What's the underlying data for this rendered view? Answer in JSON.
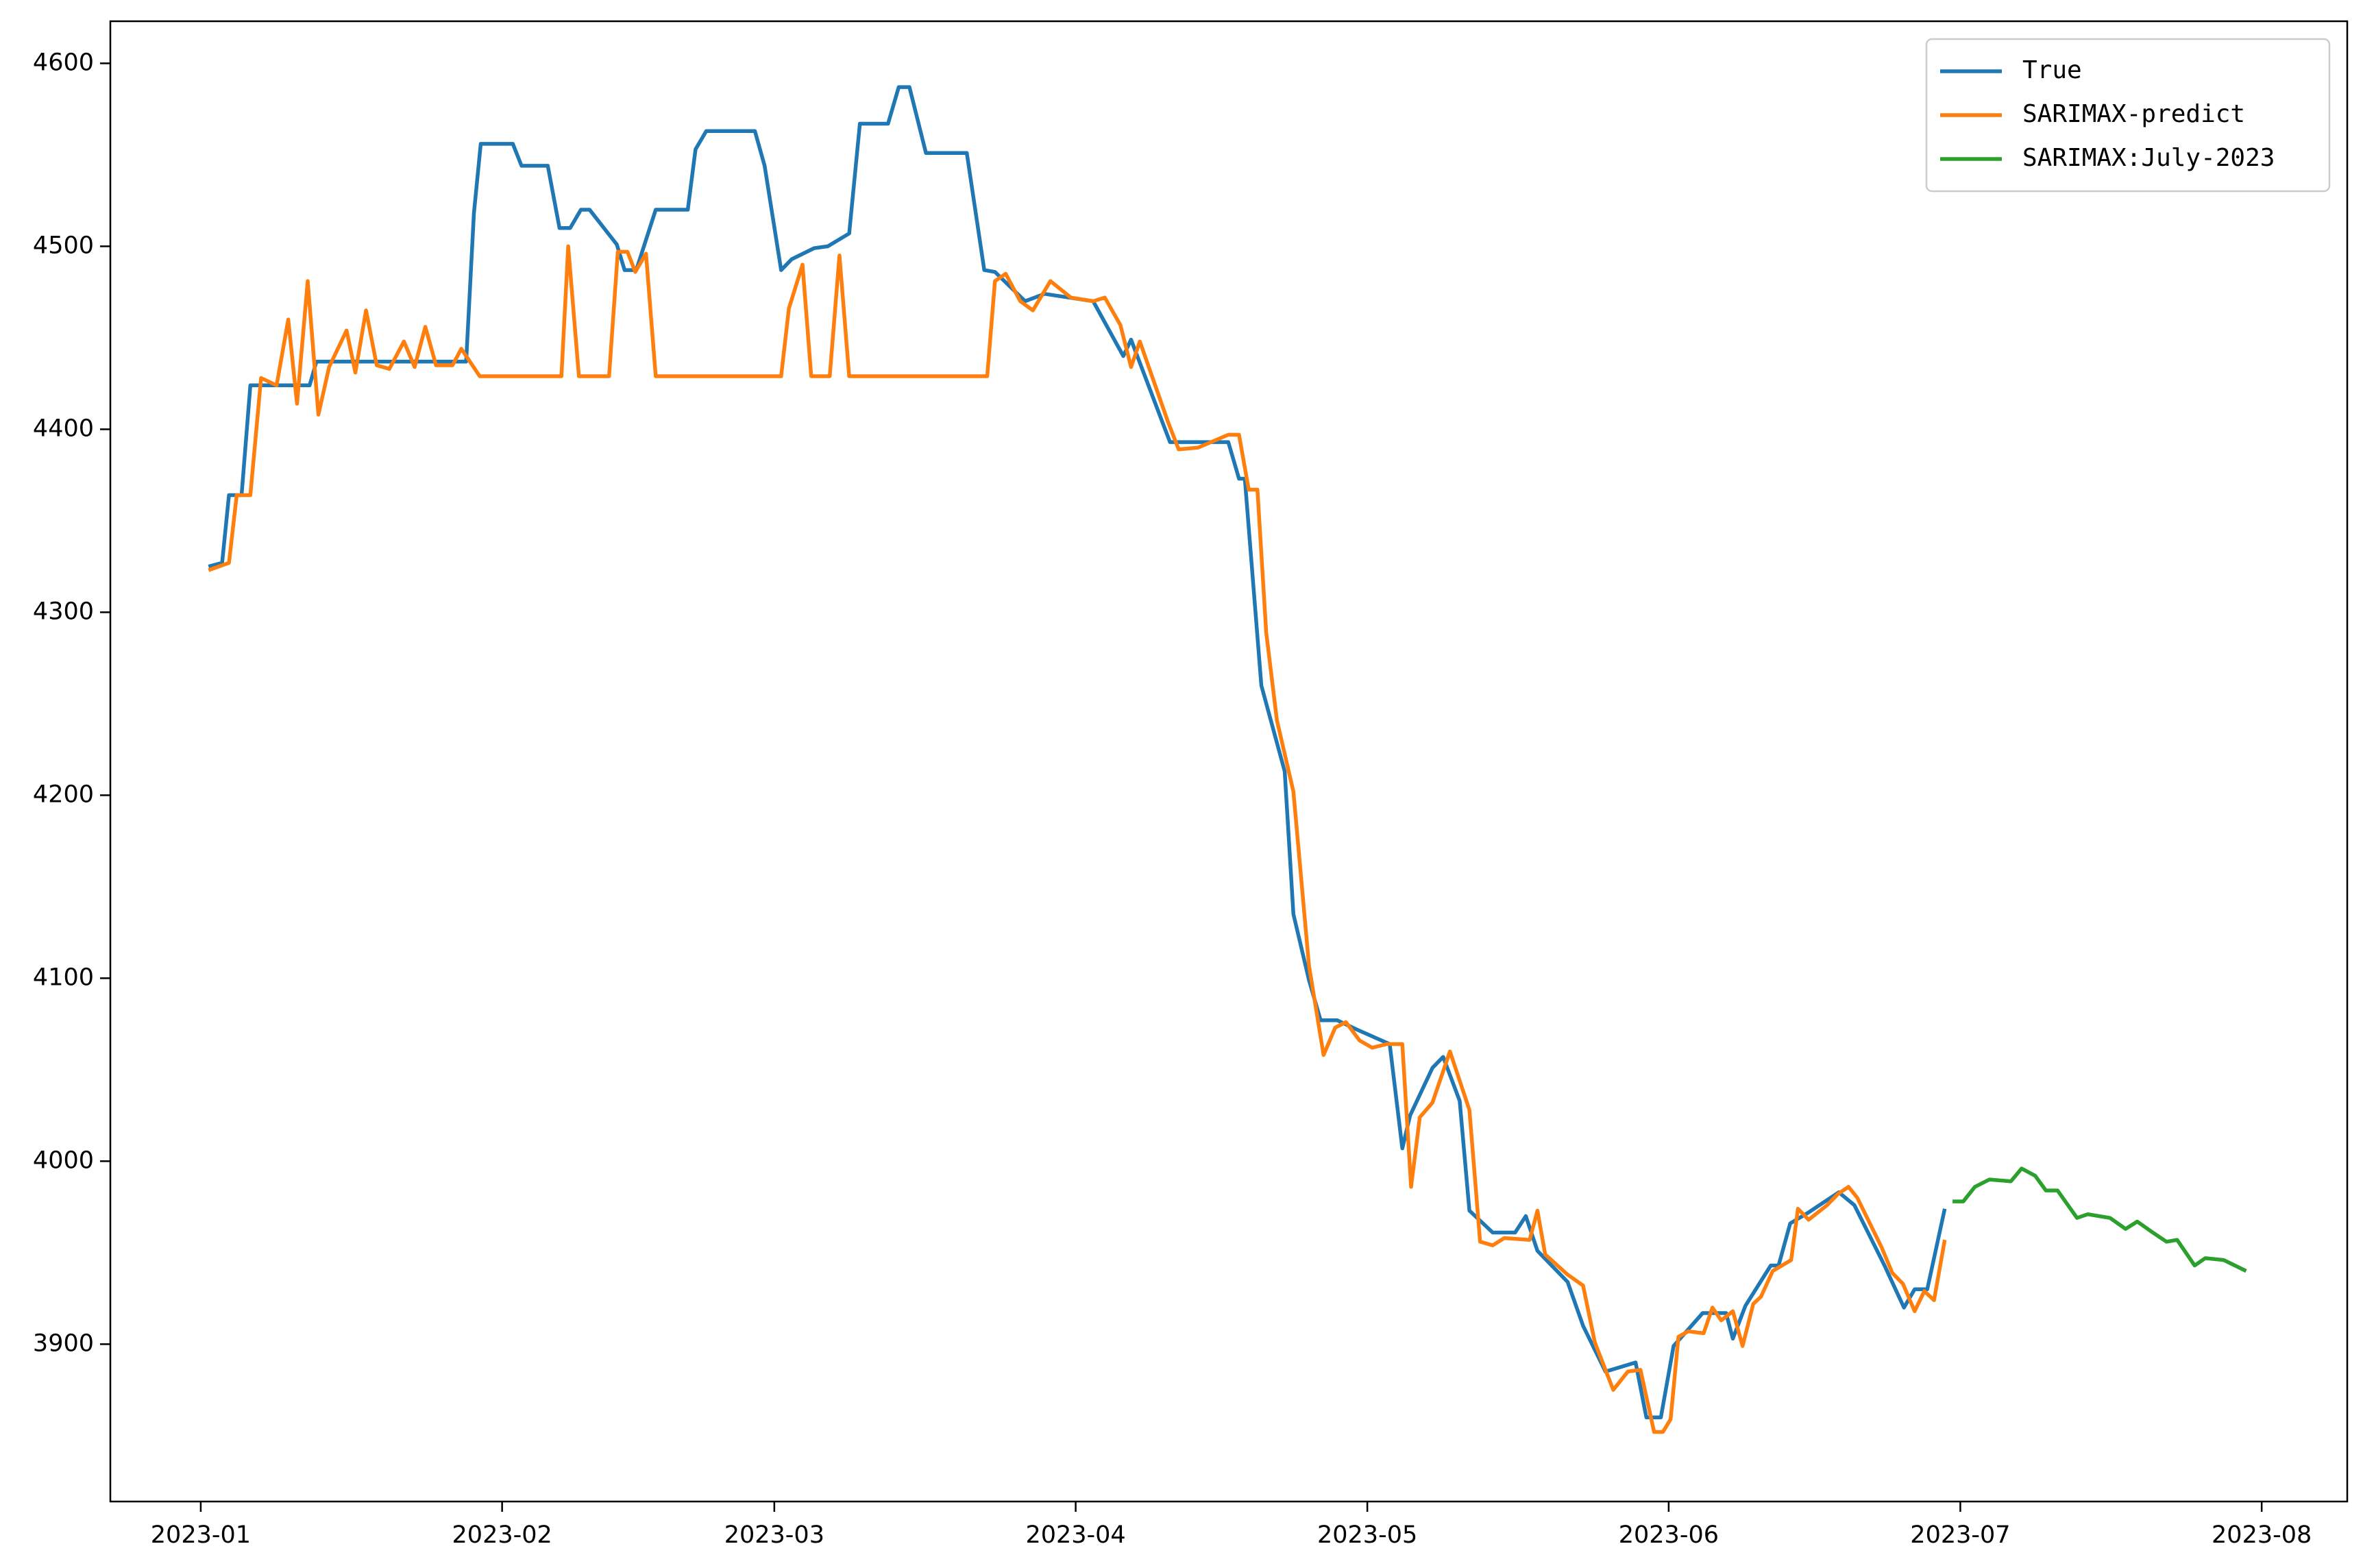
{
  "chart_data": {
    "type": "line",
    "xlim": [
      -9.3,
      220.8
    ],
    "ylim": [
      3814,
      4623
    ],
    "xticks": [
      {
        "value": 0,
        "label": "2023-01"
      },
      {
        "value": 31,
        "label": "2023-02"
      },
      {
        "value": 59,
        "label": "2023-03"
      },
      {
        "value": 90,
        "label": "2023-04"
      },
      {
        "value": 120,
        "label": "2023-05"
      },
      {
        "value": 151,
        "label": "2023-06"
      },
      {
        "value": 181,
        "label": "2023-07"
      },
      {
        "value": 212,
        "label": "2023-08"
      }
    ],
    "yticks": [
      3900,
      4000,
      4100,
      4200,
      4300,
      4400,
      4500,
      4600
    ],
    "legend": "upper right",
    "series": [
      {
        "name": "True",
        "color": "#1f77b4",
        "x": [
          0.8,
          2.2,
          2.9,
          4.2,
          5.1,
          11.2,
          11.9,
          25.9,
          27.3,
          28.1,
          28.8,
          32.1,
          33.0,
          35.7,
          36.9,
          38.0,
          39.1,
          40.0,
          42.8,
          43.6,
          44.8,
          46.8,
          50.1,
          50.9,
          52.0,
          57.0,
          58.0,
          59.7,
          60.8,
          63.1,
          64.5,
          66.7,
          67.8,
          70.7,
          71.8,
          72.9,
          74.6,
          78.8,
          80.6,
          81.7,
          84.8,
          86.8,
          91.8,
          94.9,
          95.7,
          96.7,
          99.7,
          105.7,
          106.8,
          107.4,
          109.1,
          111.5,
          112.4,
          114.0,
          115.2,
          116.9,
          118.9,
          122.3,
          123.6,
          124.4,
          126.7,
          127.8,
          129.5,
          130.5,
          132.9,
          135.2,
          136.3,
          137.5,
          140.6,
          142.2,
          144.5,
          147.6,
          148.7,
          150.2,
          151.5,
          154.5,
          156.9,
          157.6,
          158.9,
          161.5,
          162.3,
          163.5,
          165.4,
          168.5,
          170.1,
          173.2,
          175.2,
          176.3,
          177.6,
          179.4
        ],
        "values": [
          4325,
          4327,
          4364,
          4364,
          4424,
          4424,
          4437,
          4437,
          4437,
          4518,
          4556,
          4556,
          4544,
          4544,
          4510,
          4510,
          4520,
          4520,
          4501,
          4487,
          4487,
          4520,
          4520,
          4553,
          4563,
          4563,
          4544,
          4487,
          4493,
          4499,
          4500,
          4507,
          4567,
          4567,
          4587,
          4587,
          4551,
          4551,
          4487,
          4486,
          4470,
          4474,
          4470,
          4440,
          4449,
          4435,
          4393,
          4393,
          4373,
          4373,
          4260,
          4213,
          4135,
          4099,
          4077,
          4077,
          4072,
          4064,
          4007,
          4025,
          4051,
          4057,
          4033,
          3973,
          3961,
          3961,
          3970,
          3951,
          3934,
          3910,
          3885,
          3890,
          3860,
          3860,
          3899,
          3917,
          3917,
          3903,
          3921,
          3943,
          3943,
          3966,
          3972,
          3983,
          3976,
          3943,
          3920,
          3930,
          3930,
          3974
        ]
      },
      {
        "name": "SARIMAX-predict",
        "color": "#ff7f0e",
        "x": [
          0.8,
          2.9,
          3.7,
          5.1,
          6.2,
          7.8,
          9.0,
          9.9,
          11.0,
          12.1,
          13.2,
          15.0,
          15.9,
          17.0,
          18.1,
          19.4,
          20.9,
          22.0,
          23.1,
          24.2,
          25.9,
          26.8,
          28.7,
          37.1,
          37.8,
          38.9,
          42.0,
          42.9,
          43.9,
          44.7,
          45.8,
          46.8,
          59.7,
          60.5,
          61.9,
          62.8,
          64.7,
          65.7,
          66.7,
          80.9,
          81.7,
          82.8,
          84.3,
          85.6,
          87.4,
          89.5,
          91.8,
          93.0,
          94.6,
          95.7,
          96.6,
          99.5,
          100.6,
          102.6,
          105.7,
          106.8,
          107.8,
          108.7,
          109.6,
          110.7,
          112.4,
          114.0,
          115.5,
          116.7,
          117.8,
          119.2,
          120.5,
          122.0,
          123.6,
          124.5,
          125.4,
          126.7,
          128.5,
          130.5,
          131.6,
          132.9,
          134.1,
          136.7,
          137.5,
          138.3,
          140.6,
          142.2,
          143.4,
          145.3,
          146.8,
          148.1,
          149.5,
          150.4,
          151.2,
          152.0,
          153.0,
          154.6,
          155.5,
          156.4,
          157.6,
          158.6,
          159.7,
          160.5,
          161.7,
          163.6,
          164.3,
          165.4,
          167.3,
          168.4,
          169.5,
          170.4,
          172.9,
          174.0,
          175.1,
          176.3,
          177.3,
          178.3,
          179.4
        ],
        "values": [
          4323,
          4327,
          4364,
          4364,
          4428,
          4424,
          4460,
          4414,
          4481,
          4408,
          4434,
          4454,
          4431,
          4465,
          4435,
          4433,
          4448,
          4434,
          4456,
          4435,
          4435,
          4444,
          4429,
          4429,
          4500,
          4429,
          4429,
          4497,
          4497,
          4486,
          4496,
          4429,
          4429,
          4466,
          4490,
          4429,
          4429,
          4495,
          4429,
          4429,
          4481,
          4485,
          4470,
          4465,
          4481,
          4472,
          4470,
          4472,
          4457,
          4434,
          4448,
          4404,
          4389,
          4390,
          4397,
          4397,
          4367,
          4367,
          4289,
          4241,
          4202,
          4107,
          4058,
          4073,
          4076,
          4066,
          4062,
          4064,
          4064,
          3986,
          4024,
          4032,
          4060,
          4028,
          3956,
          3954,
          3958,
          3957,
          3973,
          3949,
          3938,
          3932,
          3901,
          3875,
          3885,
          3886,
          3852,
          3852,
          3859,
          3904,
          3907,
          3906,
          3920,
          3913,
          3918,
          3899,
          3922,
          3926,
          3940,
          3946,
          3974,
          3968,
          3976,
          3982,
          3986,
          3980,
          3953,
          3939,
          3933,
          3918,
          3929,
          3924,
          3957
        ]
      },
      {
        "name": "SARIMAX:July-2023",
        "color": "#2ca02c",
        "x": [
          180.2,
          181.3,
          182.5,
          184.0,
          186.2,
          187.3,
          188.7,
          189.8,
          191.0,
          193.0,
          194.1,
          196.4,
          198.0,
          199.2,
          200.8,
          202.2,
          203.3,
          205.1,
          206.2,
          208.1,
          210.4
        ],
        "values": [
          3978,
          3978,
          3986,
          3990,
          3989,
          3996,
          3992,
          3984,
          3984,
          3969,
          3971,
          3969,
          3963,
          3967,
          3961,
          3956,
          3957,
          3943,
          3947,
          3946,
          3940
        ]
      }
    ]
  }
}
